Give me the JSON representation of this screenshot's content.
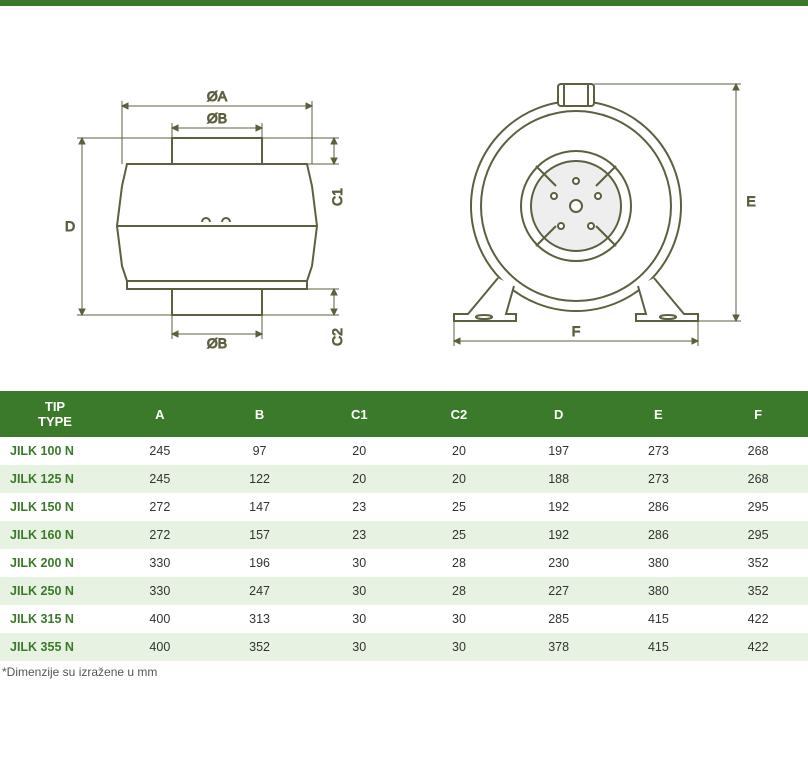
{
  "colors": {
    "header_bg": "#3a7a2a",
    "header_text": "#ffffff",
    "row_alt_bg": "#e8f2e2",
    "row_bg": "#ffffff",
    "model_text": "#3a7a2a",
    "cell_text": "#333333",
    "footnote_text": "#555555",
    "diagram_stroke": "#5d5f3f",
    "diagram_fill": "#ffffff",
    "dim_stroke": "#5d5f3f"
  },
  "diagram": {
    "side_view": {
      "labels": {
        "phiA": "ØA",
        "phiB_top": "ØB",
        "phiB_bottom": "ØB",
        "C1": "C1",
        "C2": "C2",
        "D": "D"
      }
    },
    "front_view": {
      "labels": {
        "E": "E",
        "F": "F"
      }
    }
  },
  "table": {
    "headers": {
      "type_line1": "TIP",
      "type_line2": "TYPE",
      "A": "A",
      "B": "B",
      "C1": "C1",
      "C2": "C2",
      "D": "D",
      "E": "E",
      "F": "F"
    },
    "rows": [
      {
        "model": "JILK 100 N",
        "A": "245",
        "B": "97",
        "C1": "20",
        "C2": "20",
        "D": "197",
        "E": "273",
        "F": "268"
      },
      {
        "model": "JILK 125 N",
        "A": "245",
        "B": "122",
        "C1": "20",
        "C2": "20",
        "D": "188",
        "E": "273",
        "F": "268"
      },
      {
        "model": "JILK 150 N",
        "A": "272",
        "B": "147",
        "C1": "23",
        "C2": "25",
        "D": "192",
        "E": "286",
        "F": "295"
      },
      {
        "model": "JILK 160 N",
        "A": "272",
        "B": "157",
        "C1": "23",
        "C2": "25",
        "D": "192",
        "E": "286",
        "F": "295"
      },
      {
        "model": "JILK 200 N",
        "A": "330",
        "B": "196",
        "C1": "30",
        "C2": "28",
        "D": "230",
        "E": "380",
        "F": "352"
      },
      {
        "model": "JILK 250 N",
        "A": "330",
        "B": "247",
        "C1": "30",
        "C2": "28",
        "D": "227",
        "E": "380",
        "F": "352"
      },
      {
        "model": "JILK 315 N",
        "A": "400",
        "B": "313",
        "C1": "30",
        "C2": "30",
        "D": "285",
        "E": "415",
        "F": "422"
      },
      {
        "model": "JILK 355 N",
        "A": "400",
        "B": "352",
        "C1": "30",
        "C2": "30",
        "D": "378",
        "E": "415",
        "F": "422"
      }
    ]
  },
  "footnote": "*Dimenzije su izražene u mm"
}
